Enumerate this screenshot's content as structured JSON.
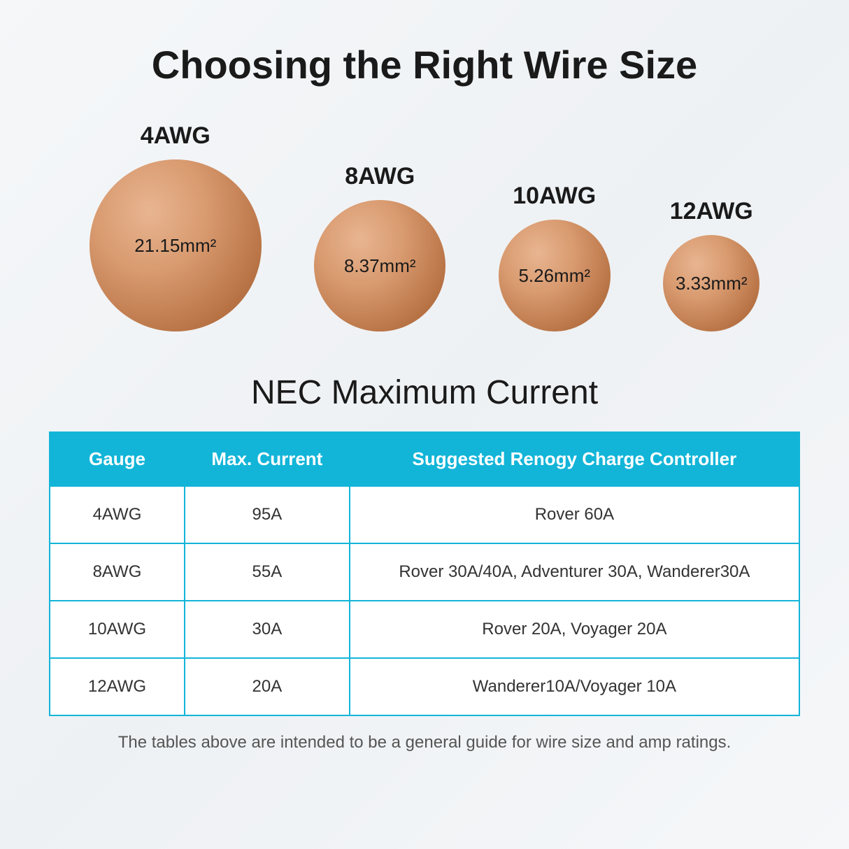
{
  "title": "Choosing the Right Wire Size",
  "circles": {
    "items": [
      {
        "label": "4AWG",
        "area": "21.15mm²",
        "diameter": 246
      },
      {
        "label": "8AWG",
        "area": "8.37mm²",
        "diameter": 188
      },
      {
        "label": "10AWG",
        "area": "5.26mm²",
        "diameter": 160
      },
      {
        "label": "12AWG",
        "area": "3.33mm²",
        "diameter": 138
      }
    ],
    "fill_gradient": {
      "highlight": "#e8b591",
      "mid1": "#d99b70",
      "mid2": "#b87345",
      "shadow": "#a05f36"
    },
    "label_fontsize": 34,
    "area_fontsize": 26,
    "label_color": "#1a1a1a",
    "area_color": "#1a1a1a"
  },
  "table": {
    "title": "NEC Maximum Current",
    "title_fontsize": 48,
    "header_bg": "#12b5d8",
    "header_fg": "#ffffff",
    "border_color": "#12b5d8",
    "cell_bg": "#ffffff",
    "cell_fg": "#333333",
    "header_fontsize": 26,
    "cell_fontsize": 24,
    "columns": [
      {
        "label": "Gauge",
        "width_pct": 18
      },
      {
        "label": "Max. Current",
        "width_pct": 22
      },
      {
        "label": "Suggested Renogy Charge Controller",
        "width_pct": 60
      }
    ],
    "rows": [
      {
        "gauge": "4AWG",
        "max_current": "95A",
        "controller": "Rover 60A"
      },
      {
        "gauge": "8AWG",
        "max_current": "55A",
        "controller": "Rover 30A/40A, Adventurer 30A, Wanderer30A"
      },
      {
        "gauge": "10AWG",
        "max_current": "30A",
        "controller": "Rover 20A, Voyager 20A"
      },
      {
        "gauge": "12AWG",
        "max_current": "20A",
        "controller": "Wanderer10A/Voyager 10A"
      }
    ]
  },
  "footnote": "The tables above are intended to be a general guide for wire size and amp ratings.",
  "page": {
    "background_gradient": [
      "#f5f7f9",
      "#eef1f4",
      "#f5f7f9"
    ],
    "title_fontsize": 56,
    "title_color": "#1a1a1a",
    "footnote_fontsize": 24,
    "footnote_color": "#555555"
  }
}
